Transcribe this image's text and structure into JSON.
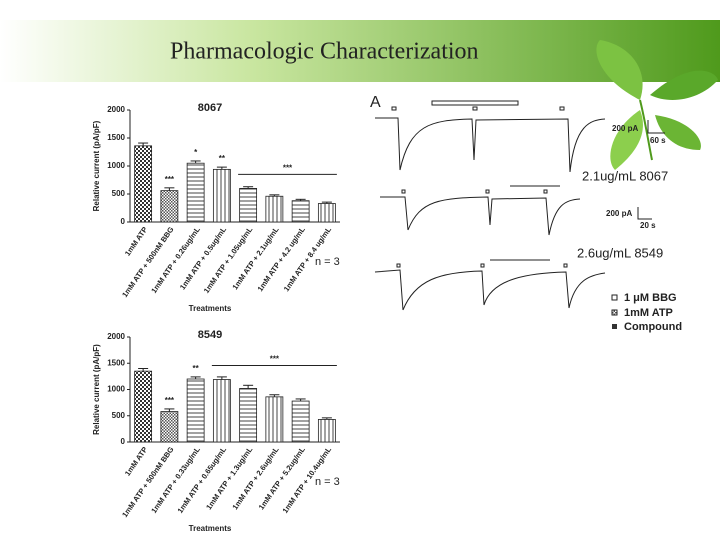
{
  "title": "Pharmacologic Characterization",
  "chart_data": [
    {
      "type": "bar",
      "title": "8067",
      "ylabel": "Relative current (pA/pF)",
      "xlabel": "Treatments",
      "note": "n = 3",
      "categories": [
        "1mM ATP",
        "1mM ATP + 500nM BBG",
        "1mM ATP + 0.26ug/mL",
        "1mM ATP + 0.5ug/mL",
        "1mM ATP + 1.05ug/mL",
        "1mM ATP + 2.1ug/mL",
        "1mM ATP + 4.2 ug/mL",
        "1mM ATP + 8.4 ug/mL"
      ],
      "values": [
        1360,
        560,
        1050,
        940,
        600,
        460,
        380,
        330
      ],
      "errors": [
        50,
        50,
        40,
        40,
        30,
        25,
        25,
        25
      ],
      "annotations": [
        "***",
        "*",
        "**",
        "***"
      ],
      "ylim": [
        0,
        2000
      ],
      "yticks": [
        0,
        500,
        1000,
        1500,
        2000
      ]
    },
    {
      "type": "bar",
      "title": "8549",
      "ylabel": "Relative current (pA/pF)",
      "xlabel": "Treatments",
      "note": "n = 3",
      "categories": [
        "1mM ATP",
        "1mM ATP + 500nM BBG",
        "1mM ATP + 0.33ug/mL",
        "1mM ATP + 0.65ug/mL",
        "1mM ATP + 1.3ug/mL",
        "1mM ATP + 2.6ug/mL",
        "1mM ATP + 5.2ug/mL",
        "1mM ATP + 10.4ug/mL"
      ],
      "values": [
        1350,
        580,
        1200,
        1190,
        1020,
        860,
        780,
        430
      ],
      "errors": [
        50,
        50,
        40,
        50,
        60,
        40,
        40,
        30
      ],
      "annotations": [
        "***",
        "**",
        "***"
      ],
      "ylim": [
        0,
        2000
      ],
      "yticks": [
        0,
        500,
        1000,
        1500,
        2000
      ]
    }
  ],
  "traces": {
    "panel": "A",
    "scale1": {
      "current": "200 pA",
      "time": "60 s"
    },
    "label1": "2.1ug/mL 8067",
    "scale2": {
      "current": "200 pA",
      "time": "20 s"
    },
    "label2": "2.6ug/mL 8549",
    "legend": [
      "1 μM BBG",
      "1mM ATP",
      "Compound"
    ]
  }
}
